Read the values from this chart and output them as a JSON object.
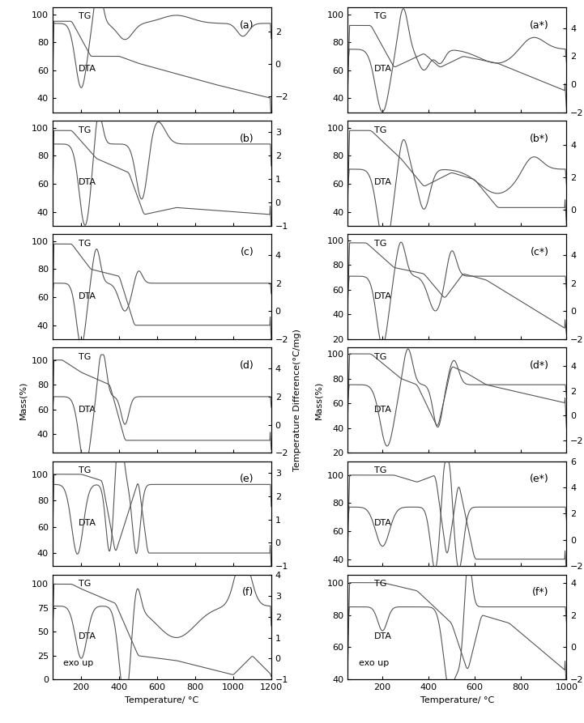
{
  "fig_width": 7.21,
  "fig_height": 8.93,
  "left_xlim": [
    50,
    1200
  ],
  "right_xlim": [
    50,
    1000
  ],
  "left_xticks": [
    200,
    400,
    600,
    800,
    1000,
    1200
  ],
  "right_xticks": [
    200,
    400,
    600,
    800,
    1000
  ],
  "xlabel": "Temperature/ °C",
  "ylabel_left": "Mass(%)",
  "ylabel_right": "Temperature Difference(°C/mg)",
  "panels": [
    "a",
    "b",
    "c",
    "d",
    "e",
    "f"
  ],
  "panels_star": [
    "a*",
    "b*",
    "c*",
    "d*",
    "e*",
    "f*"
  ],
  "background_color": "#ffffff",
  "line_color": "#555555",
  "font_size": 8,
  "label_font_size": 9
}
